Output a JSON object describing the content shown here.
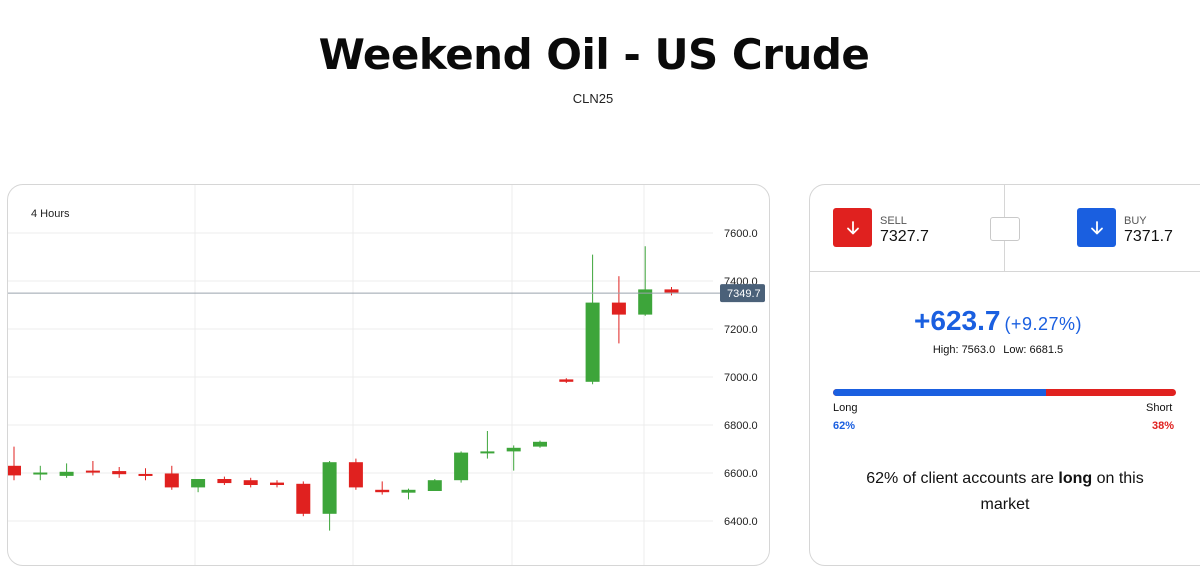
{
  "header": {
    "title": "Weekend Oil - US Crude",
    "subtitle": "CLN25"
  },
  "chart": {
    "timeframe": "4 Hours",
    "colors": {
      "up": "#3da53a",
      "down": "#e0211f",
      "last_price_tag": "#4b6179",
      "grid": "#ececec"
    }
  },
  "chart_data": {
    "type": "candlestick",
    "ylim": [
      6300,
      7700
    ],
    "y_ticks": [
      "6400.0",
      "6600.0",
      "6800.0",
      "7000.0",
      "7200.0",
      "7400.0",
      "7600.0"
    ],
    "last_price": "7349.7",
    "candles": [
      {
        "o": 6630,
        "h": 6710,
        "l": 6570,
        "c": 6590
      },
      {
        "o": 6598,
        "h": 6630,
        "l": 6570,
        "c": 6602
      },
      {
        "o": 6588,
        "h": 6640,
        "l": 6580,
        "c": 6605
      },
      {
        "o": 6610,
        "h": 6650,
        "l": 6590,
        "c": 6602
      },
      {
        "o": 6608,
        "h": 6625,
        "l": 6580,
        "c": 6595
      },
      {
        "o": 6596,
        "h": 6620,
        "l": 6570,
        "c": 6590
      },
      {
        "o": 6598,
        "h": 6630,
        "l": 6530,
        "c": 6540
      },
      {
        "o": 6540,
        "h": 6575,
        "l": 6520,
        "c": 6575
      },
      {
        "o": 6575,
        "h": 6585,
        "l": 6550,
        "c": 6558
      },
      {
        "o": 6570,
        "h": 6580,
        "l": 6540,
        "c": 6550
      },
      {
        "o": 6560,
        "h": 6570,
        "l": 6540,
        "c": 6550
      },
      {
        "o": 6555,
        "h": 6565,
        "l": 6420,
        "c": 6430
      },
      {
        "o": 6430,
        "h": 6650,
        "l": 6360,
        "c": 6645
      },
      {
        "o": 6645,
        "h": 6660,
        "l": 6530,
        "c": 6540
      },
      {
        "o": 6530,
        "h": 6565,
        "l": 6510,
        "c": 6520
      },
      {
        "o": 6518,
        "h": 6535,
        "l": 6490,
        "c": 6530
      },
      {
        "o": 6525,
        "h": 6575,
        "l": 6525,
        "c": 6570
      },
      {
        "o": 6570,
        "h": 6690,
        "l": 6560,
        "c": 6685
      },
      {
        "o": 6690,
        "h": 6775,
        "l": 6660,
        "c": 6690
      },
      {
        "o": 6690,
        "h": 6715,
        "l": 6610,
        "c": 6705
      },
      {
        "o": 6710,
        "h": 6735,
        "l": 6705,
        "c": 6730
      },
      {
        "o": 6990,
        "h": 6995,
        "l": 6975,
        "c": 6980
      },
      {
        "o": 6980,
        "h": 7510,
        "l": 6970,
        "c": 7310
      },
      {
        "o": 7310,
        "h": 7420,
        "l": 7140,
        "c": 7260
      },
      {
        "o": 7260,
        "h": 7545,
        "l": 7255,
        "c": 7365
      },
      {
        "o": 7365,
        "h": 7375,
        "l": 7340,
        "c": 7352
      }
    ]
  },
  "trade": {
    "sell_label": "SELL",
    "sell_price": "7327.7",
    "buy_label": "BUY",
    "buy_price": "7371.7",
    "sell_icon": "arrow-down-icon",
    "buy_icon": "arrow-down-icon",
    "change": "+623.7",
    "change_pct": "(+9.27%)",
    "high": "High: 7563.0",
    "low": "Low: 6681.5"
  },
  "sentiment": {
    "long_label": "Long",
    "short_label": "Short",
    "long_pct": "62%",
    "short_pct": "38%",
    "long_fraction": 0.62,
    "text_prefix": "62% of client accounts are",
    "text_bold": "long",
    "text_suffix": "on this market"
  }
}
